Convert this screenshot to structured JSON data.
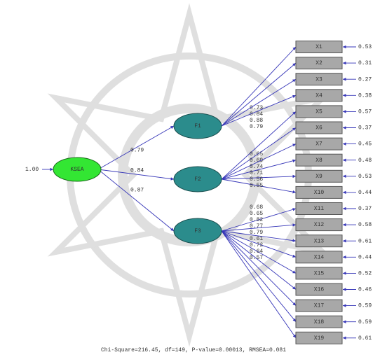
{
  "exogenous": {
    "label": "KSEA",
    "variance": "1.00"
  },
  "factors": [
    {
      "label": "F1",
      "path": "0.79"
    },
    {
      "label": "F2",
      "path": "0.84"
    },
    {
      "label": "F3",
      "path": "0.87"
    }
  ],
  "indicators": [
    {
      "label": "X1",
      "loading": "0.73",
      "error": "0.53"
    },
    {
      "label": "X2",
      "loading": "0.84",
      "error": "0.31"
    },
    {
      "label": "X3",
      "loading": "0.88",
      "error": "0.27"
    },
    {
      "label": "X4",
      "loading": "0.79",
      "error": "0.38"
    },
    {
      "label": "X5",
      "loading": "0.65",
      "error": "0.57"
    },
    {
      "label": "X6",
      "loading": "0.69",
      "error": "0.37"
    },
    {
      "label": "X7",
      "loading": "0.74",
      "error": "0.45"
    },
    {
      "label": "X8",
      "loading": "0.71",
      "error": "0.48"
    },
    {
      "label": "X9",
      "loading": "0.56",
      "error": "0.53"
    },
    {
      "label": "X10",
      "loading": "0.55",
      "error": "0.44"
    },
    {
      "label": "X11",
      "loading": "0.68",
      "error": "0.37"
    },
    {
      "label": "X12",
      "loading": "0.65",
      "error": "0.58"
    },
    {
      "label": "X13",
      "loading": "0.82",
      "error": "0.61"
    },
    {
      "label": "X14",
      "loading": "0.77",
      "error": "0.44"
    },
    {
      "label": "X15",
      "loading": "0.79",
      "error": "0.52"
    },
    {
      "label": "X16",
      "loading": "0.61",
      "error": "0.46"
    },
    {
      "label": "X17",
      "loading": "0.72",
      "error": "0.59"
    },
    {
      "label": "X18",
      "loading": "0.64",
      "error": "0.59"
    },
    {
      "label": "X19",
      "loading": "0.57",
      "error": "0.61"
    }
  ],
  "fit": "Chi-Square=216.45, df=149, P-value=0.00013, RMSEA=0.081"
}
